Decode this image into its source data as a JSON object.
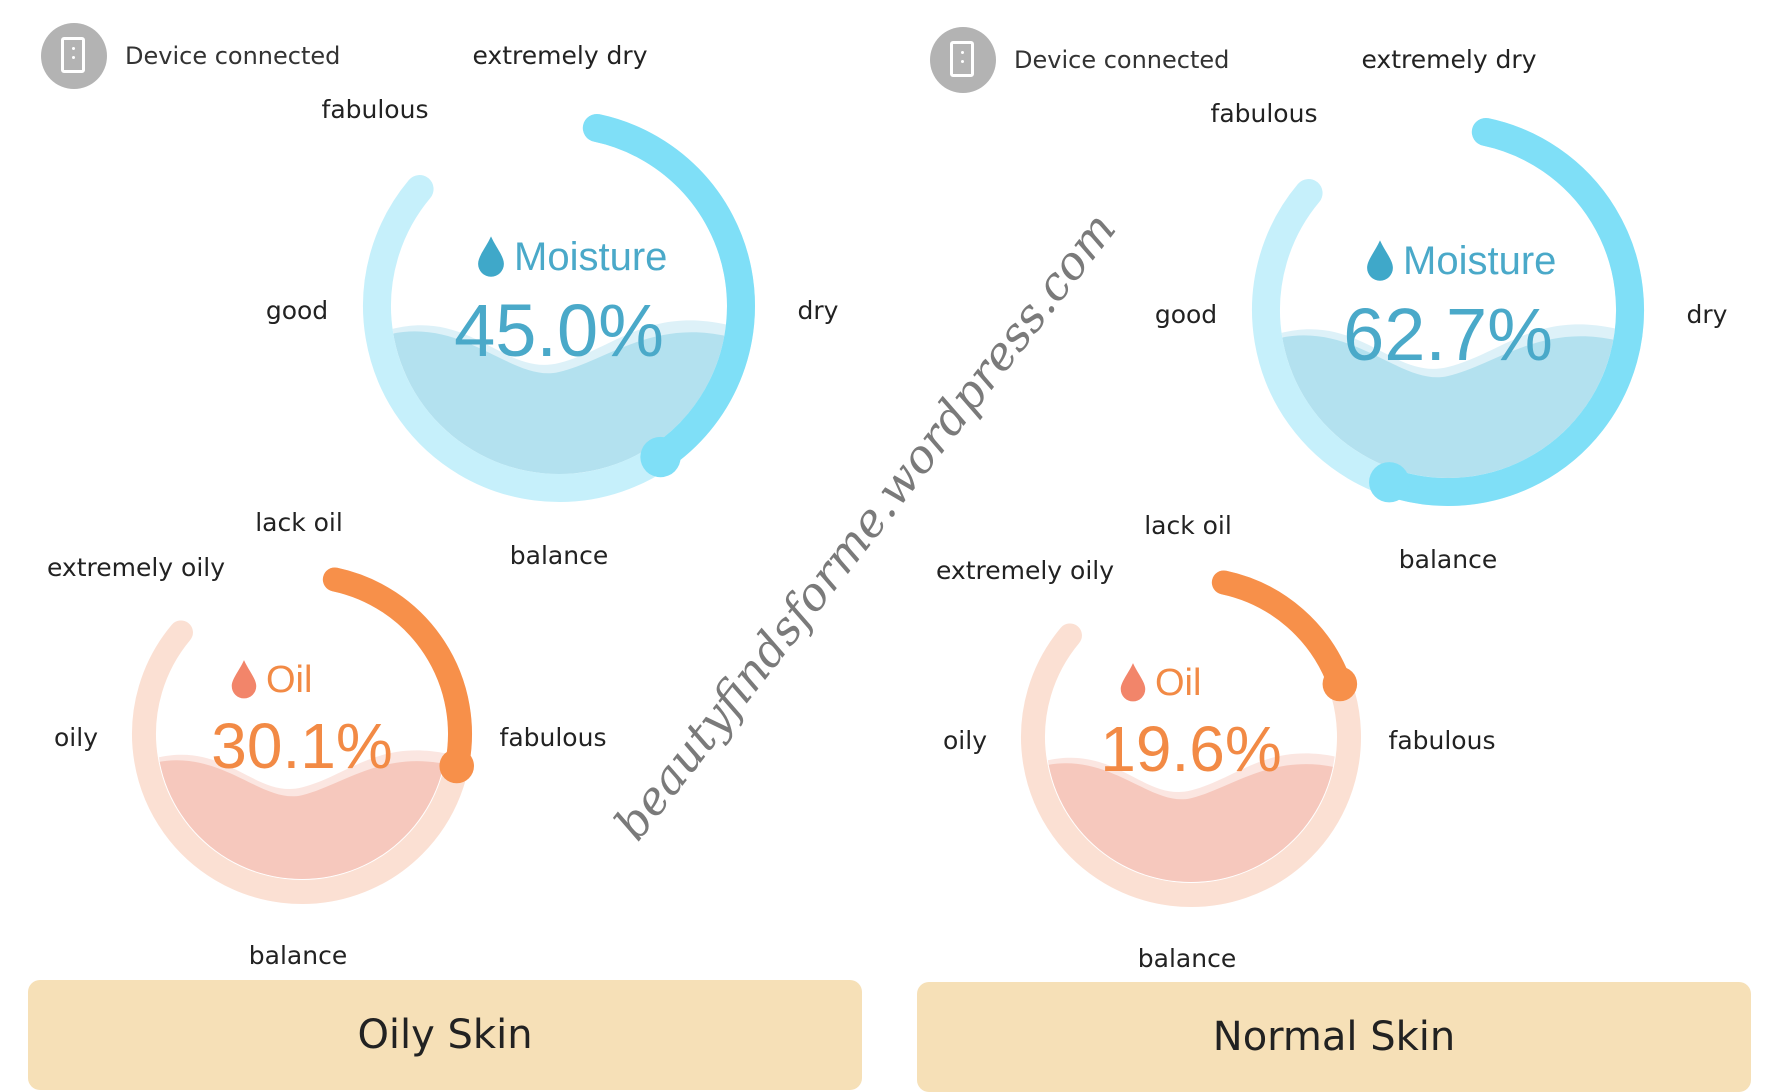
{
  "panels": [
    {
      "device": {
        "icon": "phone-icon",
        "label": "Device connected"
      },
      "moisture": {
        "icon": "water-drop-icon",
        "title": "Moisture",
        "value": "45.0%",
        "level": 0.45,
        "labels": {
          "top": "extremely dry",
          "upper_left": "fabulous",
          "left": "good",
          "right": "dry",
          "bottom": "balance"
        }
      },
      "oil": {
        "icon": "oil-drop-icon",
        "title": "Oil",
        "value": "30.1%",
        "level": 0.301,
        "labels": {
          "top": "lack oil",
          "upper_left": "extremely oily",
          "left": "oily",
          "right": "fabulous",
          "bottom": "balance"
        }
      },
      "result": "Oily Skin"
    },
    {
      "device": {
        "icon": "phone-icon",
        "label": "Device connected"
      },
      "moisture": {
        "icon": "water-drop-icon",
        "title": "Moisture",
        "value": "62.7%",
        "level": 0.627,
        "labels": {
          "top": "extremely dry",
          "upper_left": "fabulous",
          "left": "good",
          "right": "dry",
          "bottom": "balance"
        }
      },
      "oil": {
        "icon": "oil-drop-icon",
        "title": "Oil",
        "value": "19.6%",
        "level": 0.196,
        "labels": {
          "top": "lack oil",
          "upper_left": "extremely oily",
          "left": "oily",
          "right": "fabulous",
          "bottom": "balance"
        }
      },
      "result": "Normal Skin"
    }
  ],
  "watermark": "beautyfindsforme.wordpress.com",
  "colors": {
    "moisture_accent": "#7fdff7",
    "moisture_track": "#c6f0fb",
    "moisture_text": "#4aa9c9",
    "moisture_fill": "#b3e1ef",
    "oil_accent": "#f7904a",
    "oil_track": "#fbe0d3",
    "oil_text": "#f28a45",
    "oil_fill": "#f6c8bd",
    "result_bg": "#f6e0b7"
  }
}
